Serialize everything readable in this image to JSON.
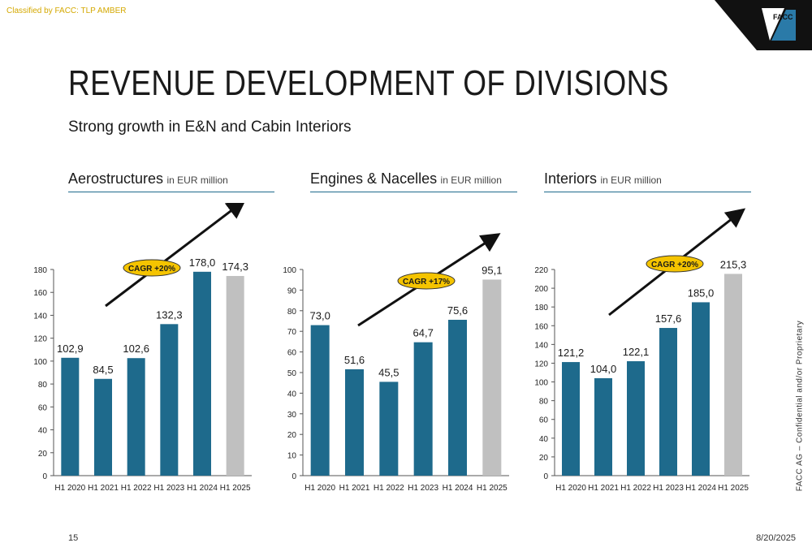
{
  "classification": "Classified by FACC: TLP AMBER",
  "logo_text": "FACC",
  "title": "REVENUE DEVELOPMENT OF DIVISIONS",
  "subtitle": "Strong growth in E&N and Cabin Interiors",
  "side_note": "FACC AG – Confidential and/or Proprietary",
  "page_number": "15",
  "date": "8/20/2025",
  "colors": {
    "bar_primary": "#1e6a8c",
    "bar_highlight": "#c0c0c0",
    "cagr_fill": "#f5c400",
    "rule": "#1e6a8c"
  },
  "chart_data": [
    {
      "type": "bar",
      "title": "Aerostructures",
      "unit": "in EUR million",
      "categories": [
        "H1 2020",
        "H1 2021",
        "H1 2022",
        "H1 2023",
        "H1 2024",
        "H1 2025"
      ],
      "values": [
        102.9,
        84.5,
        102.6,
        132.3,
        178.0,
        174.3
      ],
      "labels": [
        "102,9",
        "84,5",
        "102,6",
        "132,3",
        "178,0",
        "174,3"
      ],
      "highlight_index": 5,
      "ylim": [
        0,
        180
      ],
      "yticks": [
        0,
        20,
        40,
        60,
        80,
        100,
        120,
        140,
        160,
        180
      ],
      "annotation": "CAGR +20%",
      "grid": false
    },
    {
      "type": "bar",
      "title": "Engines & Nacelles",
      "unit": "in EUR million",
      "categories": [
        "H1 2020",
        "H1 2021",
        "H1 2022",
        "H1 2023",
        "H1 2024",
        "H1 2025"
      ],
      "values": [
        73.0,
        51.6,
        45.5,
        64.7,
        75.6,
        95.1
      ],
      "labels": [
        "73,0",
        "51,6",
        "45,5",
        "64,7",
        "75,6",
        "95,1"
      ],
      "highlight_index": 5,
      "ylim": [
        0,
        100
      ],
      "yticks": [
        0,
        10,
        20,
        30,
        40,
        50,
        60,
        70,
        80,
        90,
        100
      ],
      "annotation": "CAGR +17%",
      "grid": false
    },
    {
      "type": "bar",
      "title": "Interiors",
      "unit": "in EUR million",
      "categories": [
        "H1 2020",
        "H1 2021",
        "H1 2022",
        "H1 2023",
        "H1 2024",
        "H1 2025"
      ],
      "values": [
        121.2,
        104.0,
        122.1,
        157.6,
        185.0,
        215.3
      ],
      "labels": [
        "121,2",
        "104,0",
        "122,1",
        "157,6",
        "185,0",
        "215,3"
      ],
      "highlight_index": 5,
      "ylim": [
        0,
        220
      ],
      "yticks": [
        0,
        20,
        40,
        60,
        80,
        100,
        120,
        140,
        160,
        180,
        200,
        220
      ],
      "annotation": "CAGR +20%",
      "grid": false
    }
  ]
}
